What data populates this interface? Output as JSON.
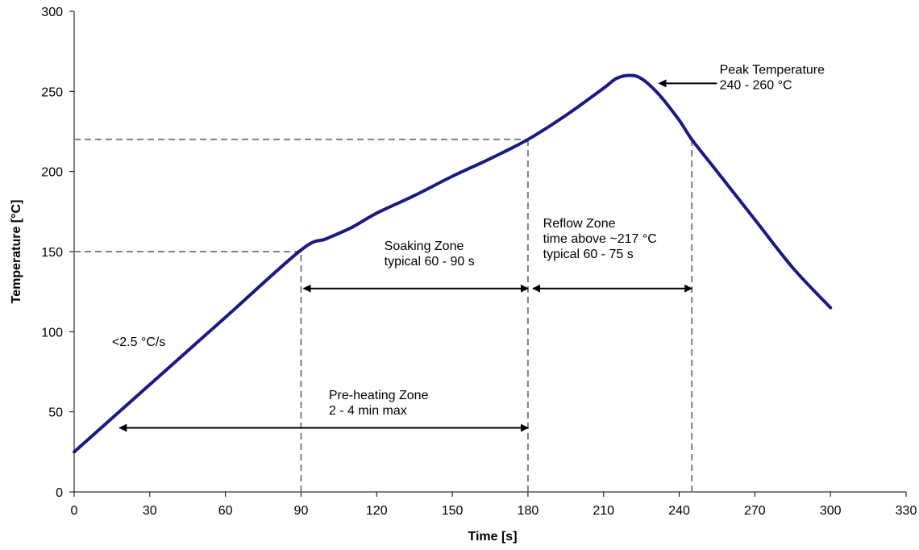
{
  "chart_data": {
    "type": "line",
    "xlabel": "Time [s]",
    "ylabel": "Temperature [°C]",
    "xlim": [
      0,
      330
    ],
    "ylim": [
      0,
      300
    ],
    "x_ticks": [
      0,
      30,
      60,
      90,
      120,
      150,
      180,
      210,
      240,
      270,
      300,
      330
    ],
    "y_ticks": [
      0,
      50,
      100,
      150,
      200,
      250,
      300
    ],
    "grid": false,
    "legend": "none",
    "series": [
      {
        "color": "#1a1a80",
        "points": [
          [
            0,
            25
          ],
          [
            30,
            67
          ],
          [
            60,
            109
          ],
          [
            90,
            151
          ],
          [
            100,
            158
          ],
          [
            110,
            165
          ],
          [
            120,
            174
          ],
          [
            135,
            185
          ],
          [
            150,
            197
          ],
          [
            165,
            208
          ],
          [
            180,
            220
          ],
          [
            195,
            235
          ],
          [
            210,
            252
          ],
          [
            215,
            258
          ],
          [
            220,
            260
          ],
          [
            225,
            258
          ],
          [
            232,
            248
          ],
          [
            240,
            232
          ],
          [
            245,
            220
          ],
          [
            255,
            200
          ],
          [
            270,
            170
          ],
          [
            285,
            140
          ],
          [
            300,
            115
          ]
        ]
      }
    ],
    "reference_lines": [
      {
        "type": "horizontal",
        "y": 220,
        "x_from": 0,
        "x_to": 180
      },
      {
        "type": "horizontal",
        "y": 150,
        "x_from": 0,
        "x_to": 90
      },
      {
        "type": "vertical",
        "x": 90,
        "y_from": 0,
        "y_to": 150
      },
      {
        "type": "vertical",
        "x": 180,
        "y_from": 0,
        "y_to": 220
      },
      {
        "type": "vertical",
        "x": 245,
        "y_from": 0,
        "y_to": 220
      }
    ],
    "spans": [
      {
        "x_from": 91,
        "x_to": 180,
        "y": 127,
        "ends": "both",
        "label": [
          "Soaking Zone",
          "typical 60 - 90 s"
        ],
        "label_x": 123,
        "label_y": 151
      },
      {
        "x_from": 182,
        "x_to": 245,
        "y": 127,
        "ends": "both",
        "label": [
          "Reflow Zone",
          "time above ~217 °C",
          "typical 60 - 75 s"
        ],
        "label_x": 186,
        "label_y": 165
      },
      {
        "x_from": 18,
        "x_to": 180,
        "y": 40,
        "ends": "both",
        "label": [
          "Pre-heating Zone",
          "2 - 4 min max"
        ],
        "label_x": 101,
        "label_y": 58
      }
    ],
    "annotations": [
      {
        "lines": [
          "Peak Temperature",
          "240 - 260 °C"
        ],
        "label_x": 256,
        "label_y": 261,
        "arrow_from": [
          255,
          255
        ],
        "arrow_to": [
          232,
          255
        ]
      },
      {
        "lines": [
          "<2.5 °C/s"
        ],
        "label_x": 15,
        "label_y": 91
      }
    ]
  }
}
